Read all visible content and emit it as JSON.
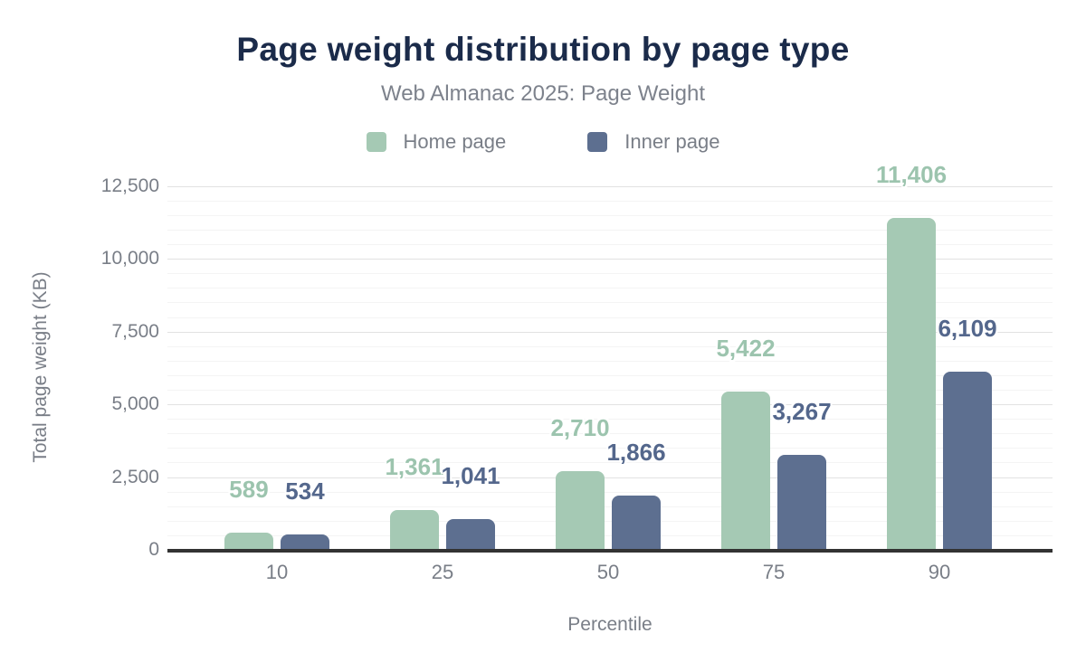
{
  "chart_data": {
    "type": "bar",
    "title": "Page weight distribution by page type",
    "subtitle": "Web Almanac 2025: Page Weight",
    "xlabel": "Percentile",
    "ylabel": "Total page weight (KB)",
    "categories": [
      "10",
      "25",
      "50",
      "75",
      "90"
    ],
    "series": [
      {
        "name": "Home page",
        "color": "#a5c9b4",
        "label_color": "#9cc4ae",
        "values": [
          589,
          1361,
          2710,
          5422,
          11406
        ],
        "labels": [
          "589",
          "1,361",
          "2,710",
          "5,422",
          "11,406"
        ]
      },
      {
        "name": "Inner page",
        "color": "#5d6f90",
        "label_color": "#54678c",
        "values": [
          534,
          1041,
          1866,
          3267,
          6109
        ],
        "labels": [
          "534",
          "1,041",
          "1,866",
          "3,267",
          "6,109"
        ]
      }
    ],
    "ylim": [
      0,
      12500
    ],
    "yticks": {
      "values": [
        0,
        2500,
        5000,
        7500,
        10000,
        12500
      ],
      "labels": [
        "0",
        "2,500",
        "5,000",
        "7,500",
        "10,000",
        "12,500"
      ]
    },
    "grid": {
      "minor_step": 500,
      "major_step": 2500,
      "visible": true
    },
    "legend_position": "top"
  },
  "theme": {
    "background": "#ffffff",
    "title_color": "#1b2b4a",
    "subtitle_color": "#7d828c",
    "axis_text_color": "#797e87",
    "axis_line_color": "#333333",
    "major_grid_color": "#e2e2e2",
    "minor_grid_color": "#f4f4f4"
  }
}
